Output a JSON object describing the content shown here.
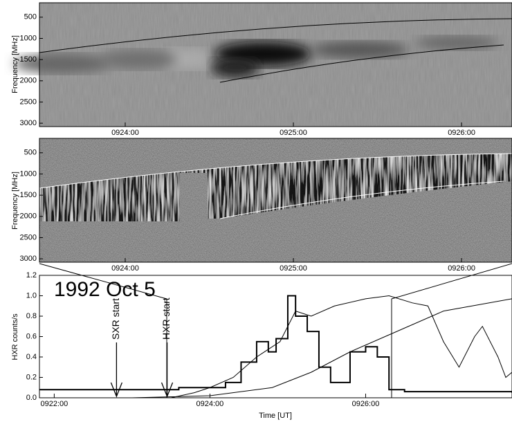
{
  "chart_data": [
    {
      "type": "spectrogram",
      "ylabel": "Frequency [MHz]",
      "ylim": [
        3080,
        160
      ],
      "yticks": [
        500,
        1000,
        1500,
        2000,
        2500,
        3000
      ],
      "xlim": [
        563.49,
        566.3
      ],
      "xticks": [
        {
          "value": 564,
          "label": "0924:00"
        },
        {
          "value": 565,
          "label": "0925:00"
        },
        {
          "value": 566,
          "label": "0926:00"
        }
      ]
    },
    {
      "type": "spectrogram",
      "ylabel": "Frequency [MHz]",
      "ylim": [
        3080,
        160
      ],
      "yticks": [
        500,
        1000,
        1500,
        2000,
        2500,
        3000
      ],
      "xlim": [
        563.49,
        566.3
      ],
      "xticks": [
        {
          "value": 564,
          "label": "0924:00"
        },
        {
          "value": 565,
          "label": "0925:00"
        },
        {
          "value": 566,
          "label": "0926:00"
        }
      ]
    },
    {
      "type": "line",
      "title": "1992 Oct 5",
      "ylabel": "HXR counts/s",
      "xlabel": "Time [UT]",
      "xlim": [
        561.81,
        567.88
      ],
      "ylim": [
        0,
        1.2
      ],
      "yticks": [
        {
          "value": 0,
          "label": "0.0"
        },
        0.2,
        0.4,
        0.6,
        0.8,
        {
          "value": 1,
          "label": "1.0"
        },
        1.2
      ],
      "xticks": [
        {
          "value": 562,
          "label": "0922:00"
        },
        {
          "value": 564,
          "label": "0924:00"
        },
        {
          "value": 566,
          "label": "0926:00"
        }
      ],
      "annotations": [
        {
          "text": "SXR start",
          "x": 562.8
        },
        {
          "text": "HXR start",
          "x": 563.45
        }
      ],
      "series": [
        {
          "color": "#000000",
          "width": 2,
          "step": true,
          "x": [
            561.81,
            563.5,
            563.6,
            564.0,
            564.2,
            564.4,
            564.6,
            564.75,
            564.85,
            565.0,
            565.1,
            565.25,
            565.4,
            565.55,
            565.8,
            566.0,
            566.15,
            566.3,
            566.5,
            567.88
          ],
          "values": [
            0.08,
            0.08,
            0.1,
            0.1,
            0.15,
            0.35,
            0.55,
            0.45,
            0.58,
            1.0,
            0.8,
            0.65,
            0.3,
            0.15,
            0.45,
            0.5,
            0.4,
            0.08,
            0.06,
            0.05
          ]
        },
        {
          "color": "#000000",
          "width": 1,
          "step": false,
          "x": [
            561.81,
            563.5,
            563.8,
            564.0,
            564.3,
            564.6,
            564.9,
            565.1,
            565.3,
            565.6,
            566.0,
            566.3,
            566.6,
            566.8,
            567.0,
            567.2,
            567.4,
            567.5,
            567.7,
            567.8,
            567.88
          ],
          "values": [
            0,
            0,
            0.05,
            0.1,
            0.2,
            0.4,
            0.55,
            0.85,
            0.8,
            0.9,
            0.97,
            1.0,
            0.93,
            0.9,
            0.55,
            0.3,
            0.6,
            0.7,
            0.4,
            0.2,
            0.25
          ]
        },
        {
          "color": "#000000",
          "width": 1,
          "step": false,
          "x": [
            563.0,
            564.0,
            564.8,
            565.3,
            565.8,
            566.4,
            567.0,
            567.88
          ],
          "values": [
            0,
            0.02,
            0.1,
            0.25,
            0.45,
            0.65,
            0.85,
            0.97
          ]
        }
      ]
    }
  ]
}
